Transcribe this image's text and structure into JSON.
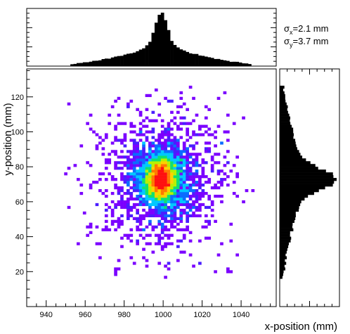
{
  "chart_data": {
    "type": "heatmap",
    "panels": [
      "main-2d-histogram",
      "x-projection-histogram",
      "y-projection-histogram"
    ],
    "xlabel": "x-position (mm)",
    "ylabel": "y-position (mm)",
    "xlim": [
      930,
      1058
    ],
    "ylim": [
      0,
      136
    ],
    "xticks": [
      940,
      960,
      980,
      1000,
      1020,
      1040
    ],
    "yticks": [
      20,
      40,
      60,
      80,
      100,
      120
    ],
    "annotations": {
      "sigma_x": {
        "symbol": "σ",
        "sub": "x",
        "value": "=2.1 mm"
      },
      "sigma_y": {
        "symbol": "σ",
        "sub": "y",
        "value": "=3.7 mm"
      }
    },
    "distribution": {
      "peak_x": 999,
      "peak_y": 73,
      "core_sigma_x": 2.1,
      "core_sigma_y": 3.7,
      "halo_extent_x": [
        948,
        1046
      ],
      "halo_extent_y": [
        16,
        126
      ]
    },
    "color_scale": [
      "#7b00ff",
      "#4a1dff",
      "#0b6cff",
      "#00c8ff",
      "#10e070",
      "#b8f000",
      "#ffd000",
      "#ff7800",
      "#ff1010"
    ],
    "projection_fill": "#000000",
    "grid": false,
    "legend": "none"
  }
}
